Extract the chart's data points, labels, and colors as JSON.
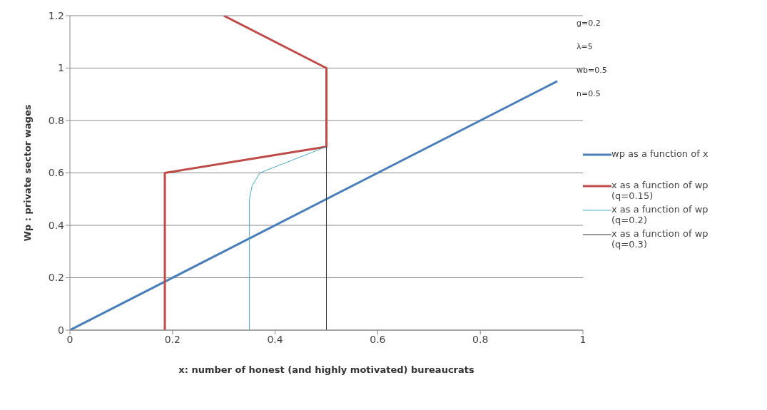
{
  "chart_data": {
    "type": "line",
    "xlabel": "x: number of honest (and highly motivated) bureaucrats",
    "ylabel": "Wp : private sector wages",
    "xlim": [
      0,
      1
    ],
    "xticks": [
      0,
      0.2,
      0.4,
      0.6,
      0.8,
      1
    ],
    "ylim": [
      0,
      1.2
    ],
    "yticks": [
      0,
      0.2,
      0.4,
      0.6,
      0.8,
      1,
      1.2
    ],
    "grid": "y",
    "legend": "right",
    "marker": "none",
    "line_style": "solid",
    "annotations": [
      "g=0.2",
      "λ=5",
      "wb=0.5",
      "n=0.5"
    ],
    "series": [
      {
        "name": "wp as a function of x",
        "color": "#4a7ebb",
        "x": [
          0,
          0.95
        ],
        "values": [
          0,
          0.95
        ]
      },
      {
        "name": "x as a function of wp (q=0.15)",
        "color": "#be4b48",
        "x": [
          0.185,
          0.185,
          0.5,
          0.5,
          0.3
        ],
        "values": [
          0,
          0.6,
          0.7,
          1,
          1.2
        ]
      },
      {
        "name": "x as a function of wp (q=0.2)",
        "color": "#4bacc6",
        "x": [
          0.35,
          0.35,
          0.355,
          0.37,
          0.5
        ],
        "values": [
          0,
          0.5,
          0.55,
          0.6,
          0.7
        ]
      },
      {
        "name": "x as a function of wp (q=0.3)",
        "color": "#333333",
        "x": [
          0.5,
          0.5
        ],
        "values": [
          0,
          0.7
        ]
      }
    ]
  }
}
